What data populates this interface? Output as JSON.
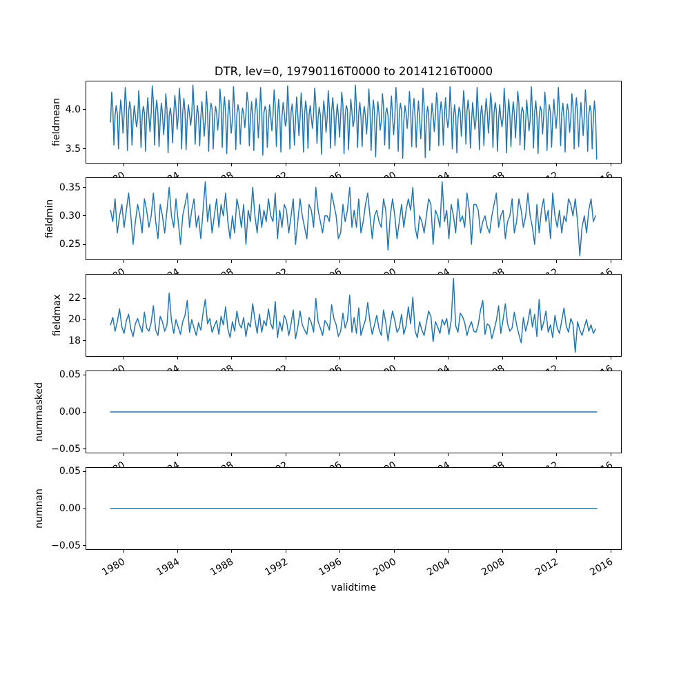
{
  "figure": {
    "background": "#ffffff",
    "spine_color": "#000000",
    "text_color": "#000000"
  },
  "chart_data": {
    "type": "line",
    "title": "DTR, lev=0, 19790116T0000 to 20141216T0000",
    "xlabel": "validtime",
    "line_color": "#1f77b4",
    "grid": false,
    "legend": false,
    "xlim": [
      1977.246,
      2016.754
    ],
    "x_tick_rotation": 30,
    "x_ticks": [
      {
        "v": 1980,
        "label": "1980"
      },
      {
        "v": 1984,
        "label": "1984"
      },
      {
        "v": 1988,
        "label": "1988"
      },
      {
        "v": 1992,
        "label": "1992"
      },
      {
        "v": 1996,
        "label": "1996"
      },
      {
        "v": 2000,
        "label": "2000"
      },
      {
        "v": 2004,
        "label": "2004"
      },
      {
        "v": 2008,
        "label": "2008"
      },
      {
        "v": 2012,
        "label": "2012"
      },
      {
        "v": 2016,
        "label": "2016"
      }
    ],
    "subplots": [
      {
        "name": "fieldmean",
        "ylabel": "fieldmean",
        "ylim": [
          3.323,
          4.357
        ],
        "yticks": [
          {
            "v": 4.0,
            "label": "4.0"
          },
          {
            "v": 3.5,
            "label": "3.5"
          }
        ],
        "x_start": 1979.0417,
        "x_step": 0.0833333,
        "values": [
          3.84,
          4.22,
          4.02,
          3.55,
          3.93,
          4.05,
          3.95,
          3.5,
          3.9,
          4.12,
          3.98,
          3.7,
          3.92,
          4.28,
          4.08,
          3.48,
          3.97,
          4.1,
          4.0,
          3.55,
          3.85,
          4.05,
          3.92,
          3.78,
          3.88,
          4.24,
          3.99,
          3.52,
          3.9,
          4.04,
          3.96,
          3.47,
          3.92,
          4.15,
          3.9,
          3.72,
          3.95,
          4.3,
          4.1,
          3.55,
          3.98,
          4.12,
          3.94,
          3.53,
          3.86,
          4.08,
          3.96,
          3.68,
          3.86,
          4.2,
          4.0,
          3.45,
          3.92,
          4.02,
          3.9,
          3.58,
          3.94,
          4.18,
          4.02,
          3.75,
          3.9,
          4.27,
          4.06,
          3.5,
          3.96,
          4.14,
          3.98,
          3.49,
          3.88,
          4.06,
          3.94,
          3.8,
          3.93,
          4.31,
          4.04,
          3.56,
          3.9,
          4.05,
          3.92,
          3.54,
          3.9,
          4.1,
          3.88,
          3.66,
          3.85,
          4.23,
          3.98,
          3.47,
          3.95,
          4.08,
          4.02,
          3.5,
          3.84,
          4.04,
          3.97,
          3.74,
          3.91,
          4.26,
          4.07,
          3.52,
          3.99,
          4.16,
          3.95,
          3.44,
          3.92,
          4.12,
          3.9,
          3.7,
          3.87,
          4.29,
          4.02,
          3.49,
          3.93,
          4.06,
          3.97,
          3.56,
          3.87,
          4.02,
          3.95,
          3.77,
          3.94,
          4.22,
          4.09,
          3.54,
          3.88,
          4.1,
          3.92,
          3.48,
          3.95,
          4.14,
          3.99,
          3.64,
          3.89,
          4.28,
          4.0,
          3.42,
          3.96,
          4.04,
          3.99,
          3.52,
          3.83,
          4.06,
          3.91,
          3.73,
          3.92,
          4.25,
          4.05,
          3.53,
          3.91,
          4.13,
          3.94,
          3.46,
          3.91,
          4.09,
          3.96,
          3.79,
          3.86,
          4.3,
          4.03,
          3.5,
          3.97,
          4.07,
          3.9,
          3.55,
          3.88,
          4.16,
          3.93,
          3.67,
          3.9,
          4.21,
          3.97,
          3.46,
          3.94,
          4.11,
          3.98,
          3.51,
          3.93,
          4.05,
          3.89,
          3.76,
          3.95,
          4.27,
          4.08,
          3.57,
          3.89,
          4.03,
          3.93,
          3.43,
          3.86,
          4.11,
          3.97,
          3.71,
          3.88,
          4.24,
          4.01,
          3.51,
          3.98,
          4.15,
          3.96,
          3.54,
          3.9,
          4.07,
          3.92,
          3.65,
          3.91,
          4.22,
          4.06,
          3.44,
          3.92,
          4.05,
          4.0,
          3.49,
          3.85,
          4.13,
          3.98,
          3.78,
          3.87,
          4.31,
          4.04,
          3.52,
          3.95,
          4.09,
          3.91,
          3.53,
          3.94,
          4.04,
          3.9,
          3.69,
          3.93,
          4.26,
          3.99,
          3.48,
          3.9,
          4.12,
          3.97,
          3.4,
          3.87,
          4.1,
          3.95,
          3.74,
          3.85,
          4.2,
          4.05,
          3.55,
          3.96,
          4.02,
          3.92,
          3.5,
          3.92,
          4.17,
          3.91,
          3.68,
          3.9,
          4.28,
          4.07,
          3.47,
          3.93,
          4.08,
          3.99,
          3.38,
          3.84,
          4.05,
          3.96,
          3.76,
          3.94,
          4.23,
          4.0,
          3.53,
          3.97,
          4.14,
          3.9,
          3.52,
          3.91,
          4.11,
          3.88,
          3.63,
          3.86,
          4.27,
          4.04,
          3.39,
          3.89,
          4.04,
          3.95,
          3.48,
          3.86,
          4.08,
          3.94,
          3.72,
          3.92,
          4.21,
          4.09,
          3.54,
          3.95,
          4.1,
          3.98,
          3.55,
          3.93,
          4.15,
          3.9,
          3.77,
          3.88,
          4.29,
          4.01,
          3.5,
          3.91,
          4.06,
          3.93,
          3.45,
          3.88,
          4.03,
          3.97,
          3.66,
          3.91,
          4.24,
          4.05,
          3.56,
          3.98,
          4.12,
          3.96,
          3.51,
          3.84,
          4.09,
          3.92,
          3.75,
          3.87,
          4.28,
          3.98,
          3.49,
          3.92,
          4.05,
          3.91,
          3.54,
          3.94,
          4.14,
          3.96,
          3.7,
          3.93,
          4.21,
          4.06,
          3.52,
          3.96,
          4.09,
          3.99,
          3.47,
          3.87,
          4.06,
          3.89,
          3.78,
          3.89,
          4.27,
          4.02,
          3.45,
          3.9,
          4.13,
          3.94,
          3.53,
          3.92,
          4.1,
          3.95,
          3.64,
          3.92,
          4.23,
          4.08,
          3.55,
          3.94,
          4.03,
          3.97,
          3.49,
          3.85,
          4.12,
          3.91,
          3.73,
          3.86,
          4.29,
          4.0,
          3.51,
          3.97,
          4.11,
          3.92,
          3.44,
          3.9,
          4.04,
          3.98,
          3.69,
          3.9,
          4.22,
          4.05,
          3.48,
          3.91,
          4.06,
          3.96,
          3.52,
          3.88,
          4.13,
          3.93,
          3.76,
          3.94,
          4.28,
          3.99,
          3.54,
          3.95,
          4.08,
          3.9,
          3.46,
          3.93,
          4.07,
          3.97,
          3.71,
          3.87,
          4.2,
          4.04,
          3.5,
          3.98,
          4.15,
          3.95,
          3.53,
          3.86,
          4.09,
          3.9,
          3.67,
          3.91,
          4.25,
          4.02,
          3.47,
          3.93,
          4.05,
          3.98,
          3.5,
          3.89,
          4.11,
          3.94,
          3.37
        ]
      },
      {
        "name": "fieldmin",
        "ylabel": "fieldmin",
        "ylim": [
          0.2235,
          0.3665
        ],
        "yticks": [
          {
            "v": 0.35,
            "label": "0.35"
          },
          {
            "v": 0.3,
            "label": "0.30"
          },
          {
            "v": 0.25,
            "label": "0.25"
          }
        ],
        "x_start": 1979.0417,
        "x_step": 0.1666667,
        "values": [
          0.31,
          0.29,
          0.33,
          0.27,
          0.3,
          0.32,
          0.28,
          0.31,
          0.34,
          0.3,
          0.25,
          0.29,
          0.32,
          0.3,
          0.27,
          0.33,
          0.31,
          0.28,
          0.3,
          0.34,
          0.29,
          0.26,
          0.32,
          0.3,
          0.27,
          0.31,
          0.35,
          0.3,
          0.28,
          0.33,
          0.29,
          0.25,
          0.3,
          0.32,
          0.34,
          0.28,
          0.31,
          0.33,
          0.28,
          0.3,
          0.26,
          0.31,
          0.36,
          0.29,
          0.32,
          0.27,
          0.3,
          0.33,
          0.28,
          0.32,
          0.3,
          0.34,
          0.29,
          0.26,
          0.3,
          0.27,
          0.33,
          0.31,
          0.28,
          0.32,
          0.25,
          0.31,
          0.29,
          0.35,
          0.3,
          0.27,
          0.32,
          0.28,
          0.31,
          0.29,
          0.33,
          0.3,
          0.29,
          0.34,
          0.26,
          0.31,
          0.28,
          0.32,
          0.31,
          0.27,
          0.3,
          0.33,
          0.25,
          0.29,
          0.33,
          0.3,
          0.28,
          0.26,
          0.32,
          0.31,
          0.28,
          0.35,
          0.31,
          0.29,
          0.27,
          0.3,
          0.3,
          0.29,
          0.34,
          0.32,
          0.3,
          0.26,
          0.27,
          0.32,
          0.29,
          0.31,
          0.35,
          0.28,
          0.31,
          0.28,
          0.33,
          0.27,
          0.29,
          0.32,
          0.34,
          0.3,
          0.26,
          0.3,
          0.31,
          0.29,
          0.28,
          0.33,
          0.31,
          0.24,
          0.3,
          0.33,
          0.3,
          0.26,
          0.29,
          0.32,
          0.28,
          0.31,
          0.33,
          0.31,
          0.35,
          0.28,
          0.26,
          0.3,
          0.29,
          0.27,
          0.3,
          0.33,
          0.32,
          0.25,
          0.31,
          0.3,
          0.28,
          0.36,
          0.29,
          0.31,
          0.26,
          0.32,
          0.3,
          0.27,
          0.33,
          0.29,
          0.3,
          0.28,
          0.34,
          0.31,
          0.25,
          0.32,
          0.32,
          0.31,
          0.27,
          0.29,
          0.3,
          0.28,
          0.27,
          0.3,
          0.32,
          0.34,
          0.28,
          0.3,
          0.31,
          0.26,
          0.29,
          0.3,
          0.33,
          0.27,
          0.29,
          0.33,
          0.31,
          0.28,
          0.3,
          0.34,
          0.3,
          0.28,
          0.25,
          0.32,
          0.27,
          0.31,
          0.33,
          0.29,
          0.31,
          0.26,
          0.34,
          0.3,
          0.28,
          0.31,
          0.27,
          0.3,
          0.29,
          0.33,
          0.32,
          0.3,
          0.33,
          0.29,
          0.23,
          0.28,
          0.3,
          0.27,
          0.31,
          0.33,
          0.29,
          0.3
        ]
      },
      {
        "name": "fieldmax",
        "ylabel": "fieldmax",
        "ylim": [
          16.55,
          24.25
        ],
        "yticks": [
          {
            "v": 22,
            "label": "22"
          },
          {
            "v": 20,
            "label": "20"
          },
          {
            "v": 18,
            "label": "18"
          }
        ],
        "x_start": 1979.0417,
        "x_step": 0.1666667,
        "values": [
          19.5,
          20.2,
          18.9,
          19.8,
          21.0,
          19.3,
          18.7,
          19.9,
          20.5,
          19.1,
          18.4,
          19.6,
          20.1,
          19.4,
          18.8,
          20.7,
          19.2,
          18.9,
          19.7,
          21.3,
          19.0,
          18.5,
          20.3,
          19.8,
          18.9,
          19.5,
          22.5,
          19.9,
          18.7,
          20.0,
          19.3,
          18.6,
          19.8,
          20.4,
          21.8,
          18.8,
          20.0,
          19.2,
          18.5,
          19.7,
          19.0,
          20.6,
          21.9,
          19.6,
          20.1,
          18.8,
          19.4,
          19.9,
          18.6,
          20.3,
          19.5,
          21.2,
          19.1,
          18.3,
          19.8,
          18.9,
          20.8,
          19.6,
          19.2,
          20.2,
          18.4,
          19.7,
          19.3,
          21.5,
          20.0,
          18.7,
          20.5,
          18.8,
          19.9,
          19.4,
          21.0,
          19.6,
          19.1,
          21.7,
          18.3,
          19.8,
          18.9,
          20.4,
          19.9,
          18.5,
          19.6,
          20.9,
          18.2,
          19.3,
          20.8,
          19.5,
          19.0,
          18.6,
          20.2,
          19.7,
          18.8,
          22.0,
          19.8,
          19.2,
          18.5,
          19.9,
          19.6,
          19.0,
          21.4,
          20.1,
          19.5,
          18.4,
          18.9,
          20.6,
          19.2,
          19.9,
          22.3,
          18.8,
          20.2,
          18.7,
          21.1,
          18.5,
          19.3,
          20.0,
          21.6,
          19.8,
          18.6,
          19.5,
          20.4,
          19.1,
          18.5,
          20.9,
          19.7,
          18.0,
          19.6,
          20.8,
          19.9,
          18.8,
          19.2,
          20.5,
          18.6,
          19.4,
          21.2,
          19.6,
          22.1,
          18.9,
          18.3,
          19.8,
          19.0,
          18.5,
          19.7,
          20.8,
          20.3,
          17.9,
          19.8,
          19.3,
          18.7,
          20.0,
          19.5,
          20.1,
          18.6,
          19.9,
          23.9,
          19.4,
          18.8,
          20.6,
          20.3,
          19.7,
          18.5,
          19.3,
          19.8,
          18.9,
          18.8,
          19.5,
          20.9,
          21.8,
          18.6,
          19.6,
          19.4,
          18.2,
          19.0,
          19.9,
          21.3,
          18.7,
          20.0,
          21.5,
          19.6,
          18.9,
          19.2,
          20.7,
          19.5,
          18.6,
          17.8,
          20.2,
          18.9,
          19.8,
          21.0,
          19.3,
          20.5,
          18.4,
          21.9,
          19.0,
          19.7,
          20.8,
          18.8,
          19.5,
          18.3,
          20.4,
          19.2,
          18.7,
          19.9,
          21.1,
          19.4,
          18.8,
          20.1,
          19.6,
          16.9,
          19.8,
          19.0,
          18.5,
          19.3,
          20.0,
          18.9,
          19.5,
          18.7,
          19.1
        ]
      },
      {
        "name": "nummasked",
        "ylabel": "nummasked",
        "ylim": [
          -0.055,
          0.055
        ],
        "yticks": [
          {
            "v": 0.05,
            "label": "0.05"
          },
          {
            "v": 0.0,
            "label": "0.00"
          },
          {
            "v": -0.05,
            "label": "−0.05"
          }
        ],
        "x_start": 1979.0417,
        "x_end": 2014.9583,
        "values": [
          0,
          0
        ]
      },
      {
        "name": "numnan",
        "ylabel": "numnan",
        "ylim": [
          -0.055,
          0.055
        ],
        "yticks": [
          {
            "v": 0.05,
            "label": "0.05"
          },
          {
            "v": 0.0,
            "label": "0.00"
          },
          {
            "v": -0.05,
            "label": "−0.05"
          }
        ],
        "x_start": 1979.0417,
        "x_end": 2014.9583,
        "values": [
          0,
          0
        ]
      }
    ]
  }
}
